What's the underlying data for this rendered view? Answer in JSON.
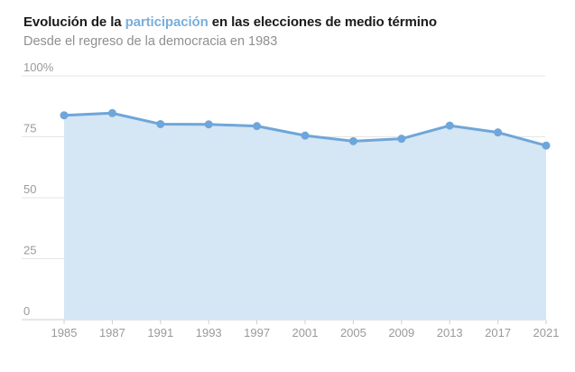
{
  "title": {
    "before": "Evolución de la ",
    "highlight": "participación",
    "after": " en las elecciones de medio término"
  },
  "subtitle": "Desde el regreso de la democracia en 1983",
  "colors": {
    "accent": "#7aaedc",
    "line": "#6fa6d9",
    "area": "#d5e6f4",
    "grid": "#e6e6e6",
    "axis_text": "#9a9a9a",
    "title_text": "#1a1a1a",
    "subtitle_text": "#8f8f8f"
  },
  "chart_data": {
    "type": "area",
    "title": "Evolución de la participación en las elecciones de medio término",
    "subtitle": "Desde el regreso de la democracia en 1983",
    "xlabel": "",
    "ylabel": "",
    "categories": [
      "1985",
      "1987",
      "1991",
      "1993",
      "1997",
      "2001",
      "2005",
      "2009",
      "2013",
      "2017",
      "2021"
    ],
    "series": [
      {
        "name": "Participación",
        "values": [
          83.8,
          84.7,
          80.2,
          80.1,
          79.4,
          75.5,
          73.2,
          74.2,
          79.6,
          76.8,
          71.4
        ]
      }
    ],
    "ylim": [
      0,
      100
    ],
    "yticks": [
      0,
      25,
      50,
      75,
      100
    ],
    "ytick_labels": [
      "0",
      "25",
      "50",
      "75",
      "100%"
    ],
    "grid": true,
    "markers": true
  }
}
